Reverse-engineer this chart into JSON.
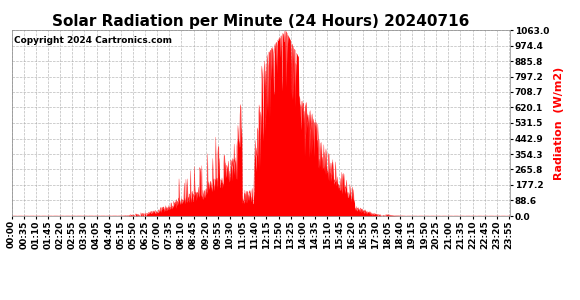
{
  "title": "Solar Radiation per Minute (24 Hours) 20240716",
  "copyright_text": "Copyright 2024 Cartronics.com",
  "ylabel": "Radiation  (W/m2)",
  "yticks": [
    0.0,
    88.6,
    177.2,
    265.8,
    354.3,
    442.9,
    531.5,
    620.1,
    708.7,
    797.2,
    885.8,
    974.4,
    1063.0
  ],
  "ymax": 1063.0,
  "ymin": 0.0,
  "fill_color": "#ff0000",
  "line_color": "#ff0000",
  "background_color": "#ffffff",
  "grid_color": "#aaaaaa",
  "zero_line_color": "#ff0000",
  "title_fontsize": 11,
  "label_fontsize": 8,
  "tick_fontsize": 6.5,
  "xtick_interval_minutes": 35,
  "total_minutes": 1440,
  "sun_rise": 315,
  "sun_set": 1140,
  "sun_peak": 790
}
